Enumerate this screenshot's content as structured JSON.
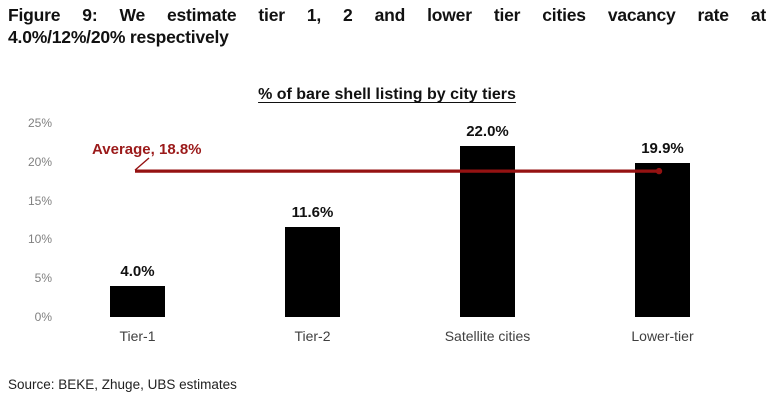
{
  "figure": {
    "title_line1": "Figure 9: We estimate tier 1, 2 and lower tier cities vacancy rate at",
    "title_line2": "4.0%/12%/20% respectively"
  },
  "chart_data": {
    "type": "bar",
    "title": "% of bare shell listing by city tiers",
    "categories": [
      "Tier-1",
      "Tier-2",
      "Satellite cities",
      "Lower-tier"
    ],
    "values": [
      4.0,
      11.6,
      22.0,
      19.9
    ],
    "value_labels": [
      "4.0%",
      "11.6%",
      "22.0%",
      "19.9%"
    ],
    "average": {
      "value": 18.8,
      "label": "Average, 18.8%"
    },
    "ylim": [
      0,
      25
    ],
    "yticks": [
      0,
      5,
      10,
      15,
      20,
      25
    ],
    "ytick_labels": [
      "0%",
      "5%",
      "10%",
      "15%",
      "20%",
      "25%"
    ],
    "grid": false,
    "legend": null,
    "bar_color": "#000000",
    "average_line_color": "#951212",
    "average_label_color": "#9b1a1a"
  },
  "source": "Source: BEKE, Zhuge, UBS estimates"
}
